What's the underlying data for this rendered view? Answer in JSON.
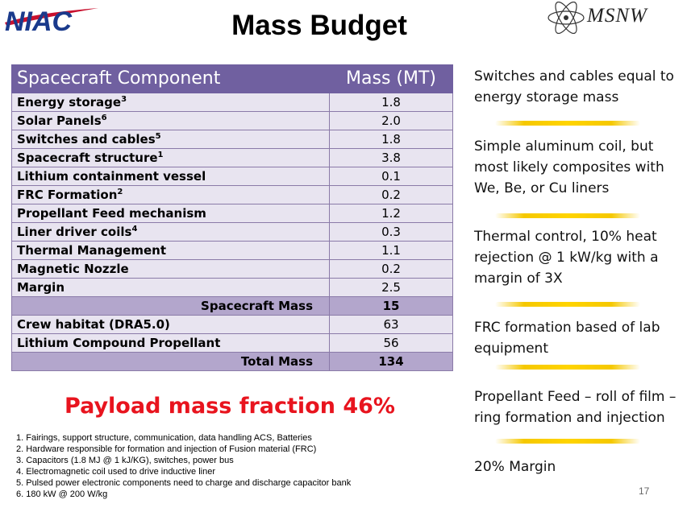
{
  "header": {
    "logo_left": "NIAC",
    "title": "Mass Budget",
    "logo_right": "MSNW"
  },
  "table": {
    "col_component": "Spacecraft Component",
    "col_mass": "Mass (MT)",
    "rows": [
      {
        "label": "Energy storage",
        "sup": "3",
        "value": "1.8"
      },
      {
        "label": "Solar Panels",
        "sup": "6",
        "value": "2.0"
      },
      {
        "label": "Switches and cables",
        "sup": "5",
        "value": "1.8"
      },
      {
        "label": "Spacecraft structure",
        "sup": "1",
        "value": "3.8"
      },
      {
        "label": "Lithium containment vessel",
        "sup": "",
        "value": "0.1"
      },
      {
        "label": "FRC Formation",
        "sup": "2",
        "value": "0.2"
      },
      {
        "label": "Propellant Feed mechanism",
        "sup": "",
        "value": "1.2"
      },
      {
        "label": "Liner driver coils",
        "sup": "4",
        "value": "0.3"
      },
      {
        "label": "Thermal Management",
        "sup": "",
        "value": "1.1"
      },
      {
        "label": "Magnetic Nozzle",
        "sup": "",
        "value": "0.2"
      },
      {
        "label": "Margin",
        "sup": "",
        "value": "2.5"
      }
    ],
    "spacecraft_mass_label": "Spacecraft Mass",
    "spacecraft_mass_value": "15",
    "rows2": [
      {
        "label": "Crew habitat (DRA5.0)",
        "value": "63"
      },
      {
        "label": "Lithium Compound Propellant",
        "value": "56"
      }
    ],
    "total_label": "Total Mass",
    "total_value": "134"
  },
  "payload_text": "Payload mass fraction 46%",
  "footnotes": [
    "1. Fairings, support structure, communication, data handling ACS, Batteries",
    "2. Hardware responsible for formation and injection of Fusion material (FRC)",
    "3. Capacitors (1.8 MJ @ 1 kJ/KG), switches, power bus",
    "4. Electromagnetic coil used to drive inductive liner",
    "5. Pulsed power electronic components need to charge and discharge capacitor bank",
    "6. 180 kW @ 200 W/kg"
  ],
  "notes": [
    "Switches and cables equal to energy storage mass",
    "Simple aluminum coil, but most likely composites with We, Be, or Cu liners",
    "Thermal control, 10% heat rejection @ 1 kW/kg with a margin of 3X",
    "FRC formation based of lab equipment",
    "Propellant Feed – roll of film – ring formation and injection",
    "20% Margin"
  ],
  "page_number": "17",
  "colors": {
    "header_purple": "#7060a0",
    "row_light": "#e8e4f0",
    "summary_row": "#b3a6cc",
    "payload_red": "#e8141e",
    "niac_blue": "#1a3a8c",
    "divider_gold": "#ffd400"
  }
}
